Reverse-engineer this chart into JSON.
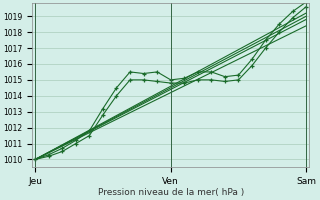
{
  "xlabel": "Pression niveau de la mer( hPa )",
  "bg_color": "#d4eee8",
  "grid_color": "#aaccbb",
  "line_color": "#1a6b2a",
  "ylim": [
    1009.5,
    1019.8
  ],
  "yticks": [
    1010,
    1011,
    1012,
    1013,
    1014,
    1015,
    1016,
    1017,
    1018,
    1019
  ],
  "day_labels": [
    "Jeu",
    "Ven",
    "Sam"
  ],
  "day_positions": [
    0,
    0.5,
    1.0
  ],
  "series": [
    {
      "x": [
        0.0,
        0.05,
        0.1,
        0.15,
        0.2,
        0.25,
        0.3,
        0.35,
        0.4,
        0.45,
        0.5,
        0.55,
        0.6,
        0.65,
        0.7,
        0.75,
        0.8,
        0.85,
        0.9,
        0.95,
        1.0
      ],
      "y": [
        1010.0,
        1010.3,
        1010.7,
        1011.2,
        1011.8,
        1013.2,
        1014.5,
        1015.5,
        1015.4,
        1015.5,
        1015.0,
        1015.1,
        1015.5,
        1015.5,
        1015.2,
        1015.3,
        1016.3,
        1017.5,
        1018.5,
        1019.3,
        1019.9
      ],
      "has_markers": true
    },
    {
      "x": [
        0.0,
        0.05,
        0.1,
        0.15,
        0.2,
        0.25,
        0.3,
        0.35,
        0.4,
        0.45,
        0.5,
        0.55,
        0.6,
        0.65,
        0.7,
        0.75,
        0.8,
        0.85,
        0.9,
        0.95,
        1.0
      ],
      "y": [
        1010.0,
        1010.2,
        1010.5,
        1011.0,
        1011.5,
        1012.8,
        1014.0,
        1015.0,
        1015.0,
        1014.9,
        1014.8,
        1014.8,
        1015.0,
        1015.0,
        1014.9,
        1015.0,
        1015.9,
        1017.0,
        1018.0,
        1018.9,
        1019.6
      ],
      "has_markers": true
    },
    {
      "x": [
        0.0,
        1.0
      ],
      "y": [
        1010.0,
        1019.2
      ],
      "has_markers": false
    },
    {
      "x": [
        0.0,
        1.0
      ],
      "y": [
        1010.0,
        1018.8
      ],
      "has_markers": false
    },
    {
      "x": [
        0.0,
        1.0
      ],
      "y": [
        1010.0,
        1018.4
      ],
      "has_markers": false
    },
    {
      "x": [
        0.0,
        1.0
      ],
      "y": [
        1010.0,
        1019.0
      ],
      "has_markers": false
    }
  ]
}
